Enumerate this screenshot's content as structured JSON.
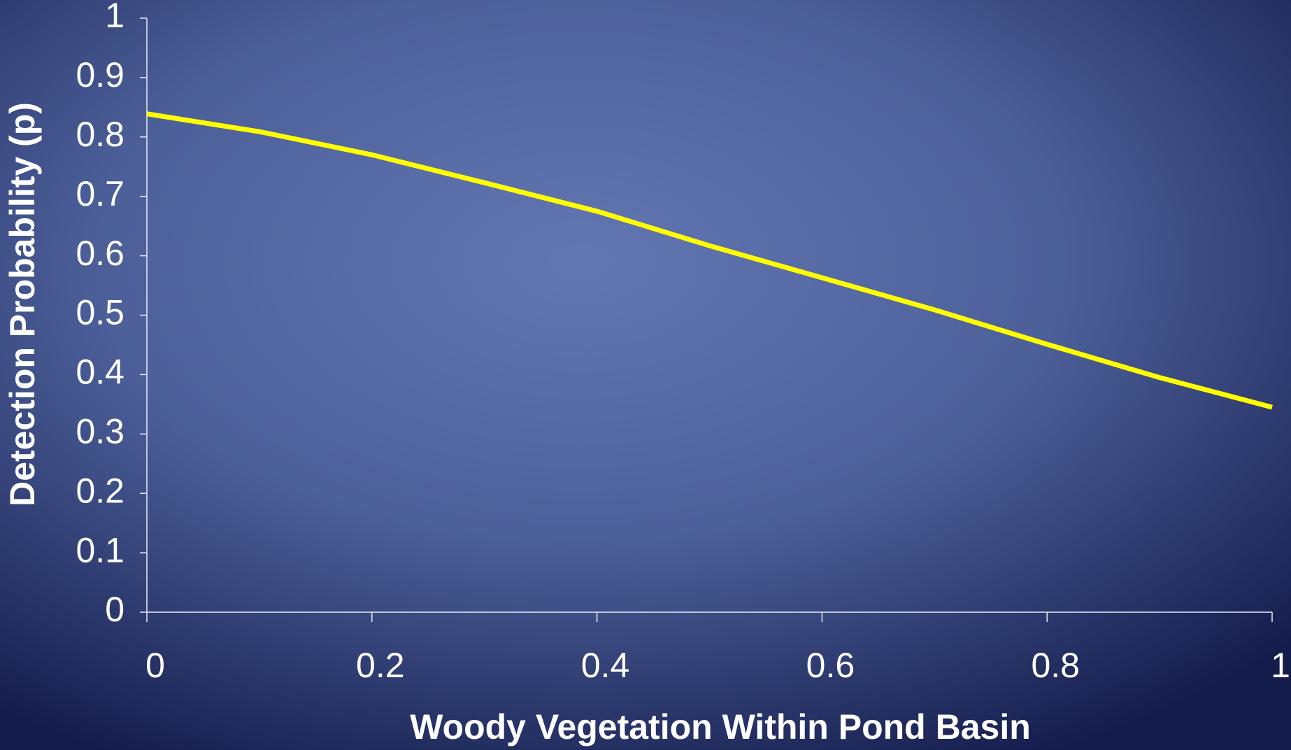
{
  "chart_data": {
    "type": "line",
    "xlabel": "Woody Vegetation Within Pond Basin",
    "ylabel": "Detection Probability (p)",
    "x": [
      0,
      0.1,
      0.2,
      0.3,
      0.4,
      0.5,
      0.6,
      0.7,
      0.8,
      0.9,
      1
    ],
    "series": [
      {
        "color": "#ffff00",
        "values": [
          0.839,
          0.809,
          0.77,
          0.723,
          0.675,
          0.617,
          0.563,
          0.509,
          0.451,
          0.395,
          0.345
        ]
      }
    ],
    "xlim": [
      0,
      1
    ],
    "xticks": [
      0,
      0.2,
      0.4,
      0.6,
      0.8,
      1
    ],
    "ylim": [
      0,
      1
    ],
    "yticks": [
      0,
      0.1,
      0.2,
      0.3,
      0.4,
      0.5,
      0.6,
      0.7,
      0.8,
      0.9,
      1
    ]
  }
}
